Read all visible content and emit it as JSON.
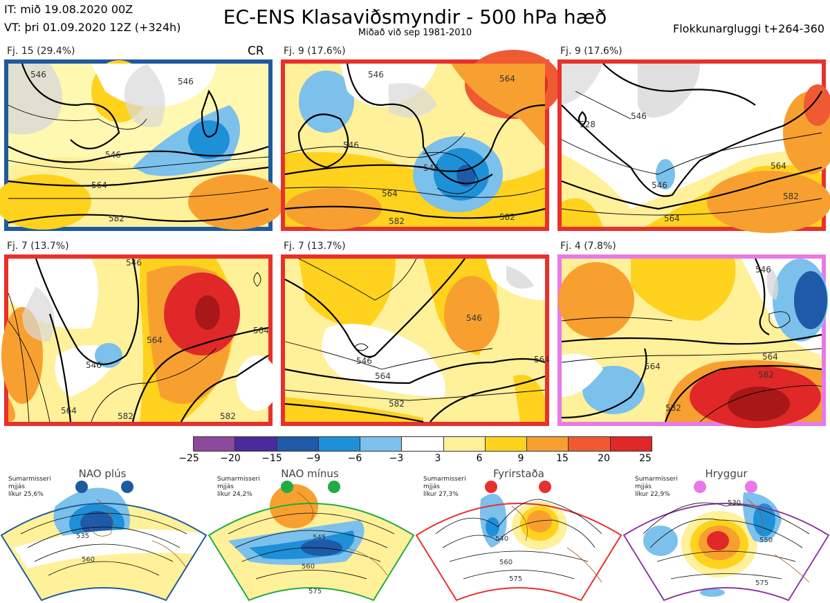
{
  "header": {
    "initial_time": "IT: mið 19.08.2020 00Z",
    "valid_time": "VT: þri 01.09.2020 12Z  (+324h)",
    "title": "EC-ENS Klasaviðsmyndir - 500 hPa hæð",
    "subtitle": "Miðað við sep 1981-2010",
    "window": "Flokkunargluggi t+264-360"
  },
  "panels": [
    {
      "label": "Fj. 15 (29.4%)",
      "regime_tag": "CR",
      "border_color": "#1e5aa0",
      "contours": [
        "546",
        "546",
        "546",
        "564",
        "582"
      ]
    },
    {
      "label": "Fj. 9 (17.6%)",
      "border_color": "#e8302c",
      "contours": [
        "546",
        "546",
        "546",
        "564",
        "564",
        "582",
        "582"
      ]
    },
    {
      "label": "Fj. 9 (17.6%)",
      "border_color": "#e8302c",
      "contours": [
        "528",
        "546",
        "546",
        "564",
        "564",
        "582"
      ]
    },
    {
      "label": "Fj. 7 (13.7%)",
      "border_color": "#e8302c",
      "contours": [
        "546",
        "546",
        "564",
        "564",
        "564",
        "582",
        "582"
      ]
    },
    {
      "label": "Fj. 7 (13.7%)",
      "border_color": "#e8302c",
      "contours": [
        "546",
        "546",
        "564",
        "564",
        "582"
      ]
    },
    {
      "label": "Fj. 4 (7.8%)",
      "border_color": "#e879e8",
      "contours": [
        "546",
        "564",
        "564",
        "582",
        "582"
      ]
    }
  ],
  "colorbar": {
    "colors": [
      "#8b4a9c",
      "#4b2a9c",
      "#1e5aa8",
      "#1e90d8",
      "#7cc0ec",
      "#ffffff",
      "#fff09a",
      "#ffd21e",
      "#f7a030",
      "#f05a32",
      "#e02828",
      "#a81818"
    ],
    "ticks": [
      "−25",
      "−20",
      "−15",
      "−9",
      "−6",
      "−3",
      "3",
      "6",
      "9",
      "15",
      "20",
      "25"
    ]
  },
  "regimes": [
    {
      "name": "NAO plús",
      "note": "Sumarmisseri\nmjjás\nlíkur 25,6%",
      "dot_color": "#1e5aa0",
      "border_color": "#1e5aa0",
      "contours": [
        "535",
        "560"
      ]
    },
    {
      "name": "NAO mínus",
      "note": "Sumarmisseri\nmjjás\nlíkur 24,2%",
      "dot_color": "#22aa44",
      "border_color": "#22aa44",
      "contours": [
        "545",
        "560",
        "575"
      ]
    },
    {
      "name": "Fyrirstaða",
      "note": "Sumarmisseri\nmjjás\nlíkur 27,3%",
      "dot_color": "#e8302c",
      "border_color": "#e8302c",
      "contours": [
        "540",
        "560",
        "575"
      ]
    },
    {
      "name": "Hryggur",
      "note": "Sumarmisseri\nmjjás\nlíkur 22,9%",
      "dot_color": "#e879e8",
      "border_color": "#8b3aa0",
      "contours": [
        "530",
        "550",
        "575"
      ]
    }
  ]
}
